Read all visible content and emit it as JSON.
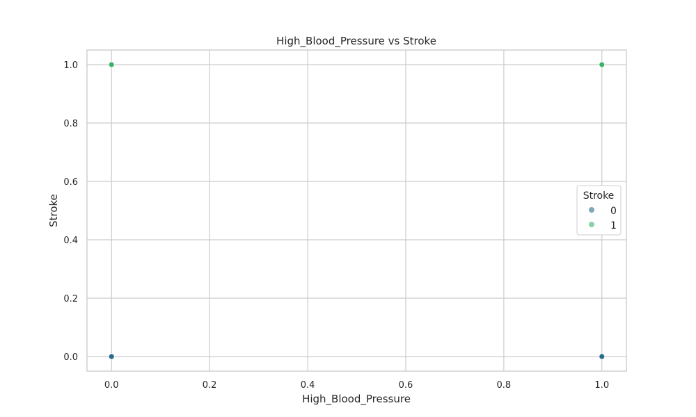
{
  "chart_data": {
    "type": "scatter",
    "title": "High_Blood_Pressure vs Stroke",
    "xlabel": "High_Blood_Pressure",
    "ylabel": "Stroke",
    "xlim": [
      -0.05,
      1.05
    ],
    "ylim": [
      -0.05,
      1.05
    ],
    "xticks": [
      "0.0",
      "0.2",
      "0.4",
      "0.6",
      "0.8",
      "1.0"
    ],
    "yticks": [
      "0.0",
      "0.2",
      "0.4",
      "0.6",
      "0.8",
      "1.0"
    ],
    "grid": true,
    "legend": {
      "title": "Stroke",
      "placement": "center-right",
      "entries": [
        {
          "label": "0",
          "color": "#2a6a8c"
        },
        {
          "label": "1",
          "color": "#3bb36a"
        }
      ]
    },
    "series": [
      {
        "name": "0",
        "color": "#2a6a8c",
        "points": [
          {
            "x": 0.0,
            "y": 0.0
          },
          {
            "x": 1.0,
            "y": 0.0
          }
        ]
      },
      {
        "name": "1",
        "color": "#3bb36a",
        "points": [
          {
            "x": 0.0,
            "y": 1.0
          },
          {
            "x": 1.0,
            "y": 1.0
          }
        ]
      }
    ]
  }
}
